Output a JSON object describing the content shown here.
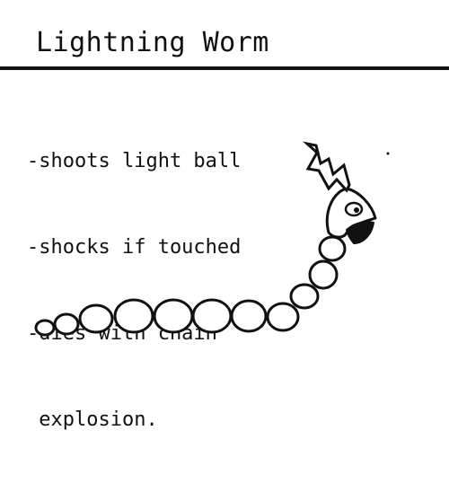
{
  "entity": {
    "title": "Lightning Worm",
    "traits": [
      "-shoots light ball",
      "-shocks if touched",
      "-dies with chain",
      " explosion."
    ]
  }
}
